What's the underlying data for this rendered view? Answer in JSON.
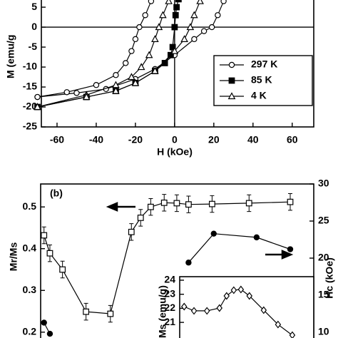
{
  "chart_data": [
    {
      "type": "line",
      "x_label": "H (kOe)",
      "y_label": "M (emu/g",
      "xlim": [
        -68,
        71
      ],
      "ylim": [
        -25,
        6.8
      ],
      "xticks": [
        -60,
        -40,
        -20,
        0,
        20,
        40,
        60
      ],
      "yticks": [
        5,
        0,
        -5,
        -10,
        -15,
        -20,
        -25
      ],
      "zero_lines": true,
      "legend": "center right",
      "series": [
        {
          "name": "297 K",
          "marker": "circle-open",
          "color": "#000000",
          "x": [
            -12,
            -15,
            -18,
            -20,
            -22,
            -25,
            -30,
            -40,
            -55,
            -70,
            null,
            -70,
            -50,
            -35,
            -20,
            -10,
            0,
            10,
            15,
            19,
            22,
            25
          ],
          "values": [
            6.5,
            3,
            0,
            -3,
            -6,
            -9,
            -12,
            -14.5,
            -16.3,
            -17.5,
            null,
            -17.5,
            -16.5,
            -15.5,
            -13,
            -10.5,
            -7,
            -3,
            -1,
            0,
            3,
            6.5
          ]
        },
        {
          "name": "85 K",
          "marker": "square-filled",
          "color": "#000000",
          "x": [
            -70,
            -45,
            -30,
            -20,
            -10,
            -5,
            -2,
            -1,
            0,
            0.5,
            1,
            2
          ],
          "values": [
            -20,
            -17.5,
            -16,
            -14,
            -11,
            -9,
            -7,
            -5,
            0,
            3,
            5,
            7
          ]
        },
        {
          "name": "4 K",
          "marker": "triangle-open",
          "color": "#000000",
          "x": [
            -3,
            -6,
            -8,
            -10,
            -13,
            -17,
            -22,
            -30,
            -45,
            -70,
            null,
            -70,
            -45,
            -30,
            -20,
            -10,
            0,
            5,
            8,
            10,
            13
          ],
          "values": [
            6.5,
            3,
            0,
            -3,
            -7,
            -10,
            -12.5,
            -14.5,
            -17,
            -20,
            null,
            -20,
            -17.5,
            -16,
            -14,
            -11,
            -6,
            -3,
            0,
            3,
            6.5
          ]
        }
      ]
    },
    {
      "type": "line",
      "panel_label": "(b)",
      "y_label": "Mr/Ms",
      "y2_label": "Hc (kOe)",
      "xlim": [
        0,
        325
      ],
      "ylim": [
        0.186,
        0.555
      ],
      "y2lim": [
        9.23,
        30
      ],
      "yticks": [
        0.5,
        0.4,
        0.3,
        0.2
      ],
      "y2ticks": [
        30,
        25,
        20,
        15,
        10
      ],
      "series": [
        {
          "marker": "square-open",
          "color": "#000000",
          "x": [
            4,
            11,
            26,
            54,
            83,
            108,
            119,
            131,
            147,
            162,
            176,
            204,
            248,
            297
          ],
          "values": [
            0.432,
            0.389,
            0.35,
            0.249,
            0.244,
            0.44,
            0.474,
            0.5,
            0.51,
            0.509,
            0.506,
            0.507,
            0.509,
            0.512
          ],
          "errors": [
            0.02,
            0.02,
            0.02,
            0.02,
            0.02,
            0.02,
            0.02,
            0.02,
            0.02,
            0.02,
            0.02,
            0.02,
            0.02,
            0.02
          ]
        },
        {
          "marker": "circle-filled",
          "color": "#000000",
          "axis": "y2",
          "x": [
            4,
            11,
            100,
            176,
            206,
            257,
            297
          ],
          "values": [
            11.3,
            9.8,
            null,
            19.4,
            23.3,
            22.8,
            21.2
          ]
        }
      ]
    },
    {
      "type": "line",
      "y_label": "Ms (emu/g)",
      "xlim": [
        0,
        300
      ],
      "ylim": [
        19.89,
        24.25
      ],
      "yticks": [
        24,
        23,
        22,
        21
      ],
      "series": [
        {
          "marker": "diamond-open",
          "color": "#000000",
          "x": [
            10,
            32,
            61,
            89,
            105,
            121,
            137,
            156,
            188,
            220,
            252
          ],
          "values": [
            22.12,
            21.82,
            21.82,
            22.02,
            22.88,
            23.29,
            23.34,
            22.88,
            21.87,
            20.85,
            20.09
          ]
        }
      ]
    }
  ]
}
